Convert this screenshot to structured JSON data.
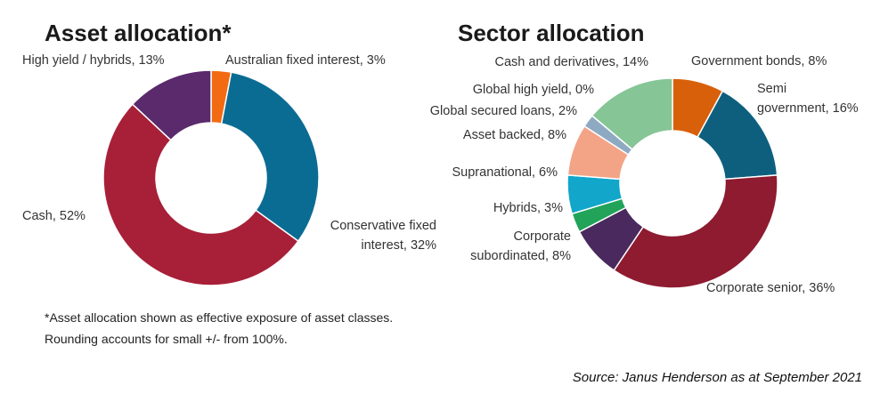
{
  "chart_data": [
    {
      "type": "pie",
      "title": "Asset allocation*",
      "values": [
        3,
        32,
        52,
        13
      ],
      "value_labels": [
        "Australian fixed interest, 3%",
        "Conservative fixed\ninterest, 32%",
        "Cash, 52%",
        "High yield / hybrids, 13%"
      ],
      "colors": [
        "#f26b12",
        "#0b6c93",
        "#a81f38",
        "#5a2a6c"
      ]
    },
    {
      "type": "pie",
      "title": "Sector allocation",
      "values": [
        8,
        16,
        36,
        8,
        3,
        6,
        8,
        2,
        0,
        14
      ],
      "value_labels": [
        "Government bonds, 8%",
        "Semi\ngovernment, 16%",
        "Corporate senior, 36%",
        "Corporate\nsubordinated, 8%",
        "Hybrids, 3%",
        "Supranational, 6%",
        "Asset backed, 8%",
        "Global secured loans, 2%",
        "Global high yield, 0%",
        "Cash and derivatives, 14%"
      ],
      "colors": [
        "#d8600a",
        "#0e5f7e",
        "#8e1b30",
        "#4a2a5e",
        "#22a35a",
        "#12a6cb",
        "#f3a486",
        "#8eaac3",
        "#f2b6c6",
        "#86c596"
      ]
    }
  ],
  "footnote": [
    "*Asset allocation shown as effective exposure of asset classes.",
    "Rounding accounts for small +/- from 100%."
  ],
  "source": "Source: Janus Henderson as at September 2021"
}
